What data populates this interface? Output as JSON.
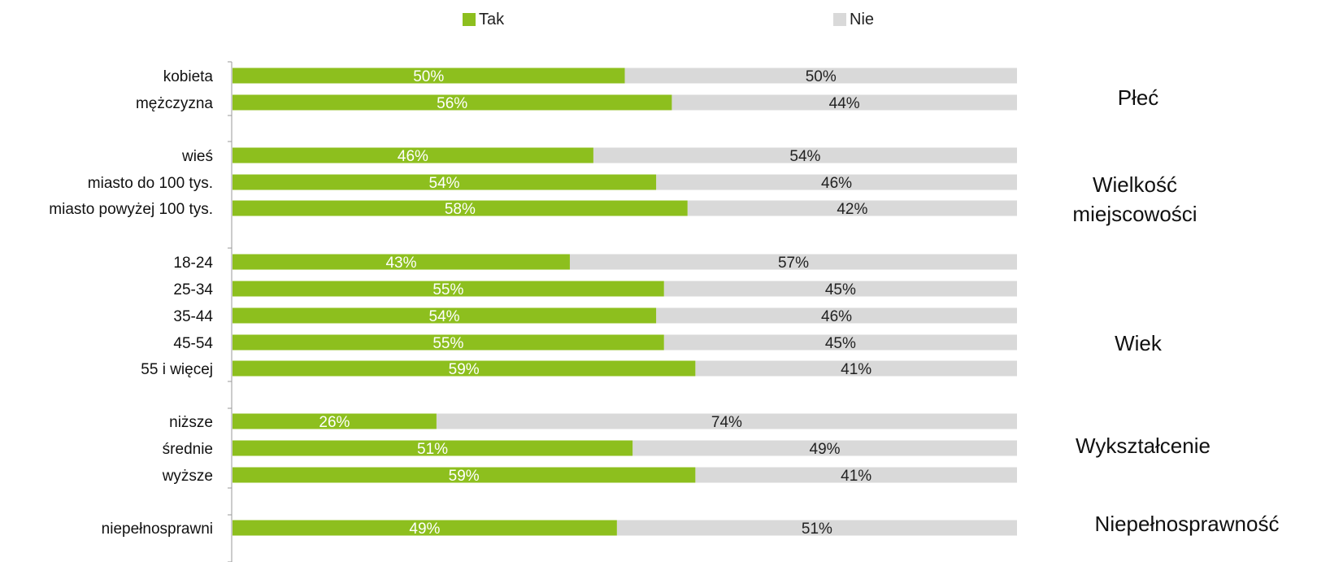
{
  "chart_data": {
    "type": "bar",
    "orientation": "horizontal",
    "stacked": "percent",
    "legend_position": "top",
    "series": [
      {
        "name": "Tak",
        "color": "#8DBF1E",
        "label_color": "#ffffff"
      },
      {
        "name": "Nie",
        "color": "#D9D9D9",
        "label_color": "#222222"
      }
    ],
    "categories": [
      {
        "label": "kobieta",
        "tak": 50,
        "nie": 50
      },
      {
        "label": "mężczyzna",
        "tak": 56,
        "nie": 44
      },
      {
        "label": "wieś",
        "tak": 46,
        "nie": 54
      },
      {
        "label": "miasto do 100 tys.",
        "tak": 54,
        "nie": 46
      },
      {
        "label": "miasto powyżej 100 tys.",
        "tak": 58,
        "nie": 42
      },
      {
        "label": "18-24",
        "tak": 43,
        "nie": 57
      },
      {
        "label": "25-34",
        "tak": 55,
        "nie": 45
      },
      {
        "label": "35-44",
        "tak": 54,
        "nie": 46
      },
      {
        "label": "45-54",
        "tak": 55,
        "nie": 45
      },
      {
        "label": "55 i więcej",
        "tak": 59,
        "nie": 41
      },
      {
        "label": "niższe",
        "tak": 26,
        "nie": 74
      },
      {
        "label": "średnie",
        "tak": 51,
        "nie": 49
      },
      {
        "label": "wyższe",
        "tak": 59,
        "nie": 41
      },
      {
        "label": "niepełnosprawni",
        "tak": 49,
        "nie": 51
      }
    ],
    "groups": [
      {
        "label": "Płeć",
        "rows": [
          0,
          1
        ]
      },
      {
        "label": "Wielkość miejscowości",
        "rows": [
          2,
          3,
          4
        ]
      },
      {
        "label": "Wiek",
        "rows": [
          5,
          6,
          7,
          8,
          9
        ]
      },
      {
        "label": "Wykształcenie",
        "rows": [
          10,
          11,
          12
        ]
      },
      {
        "label": "Niepełnosprawność",
        "rows": [
          13
        ]
      }
    ]
  }
}
